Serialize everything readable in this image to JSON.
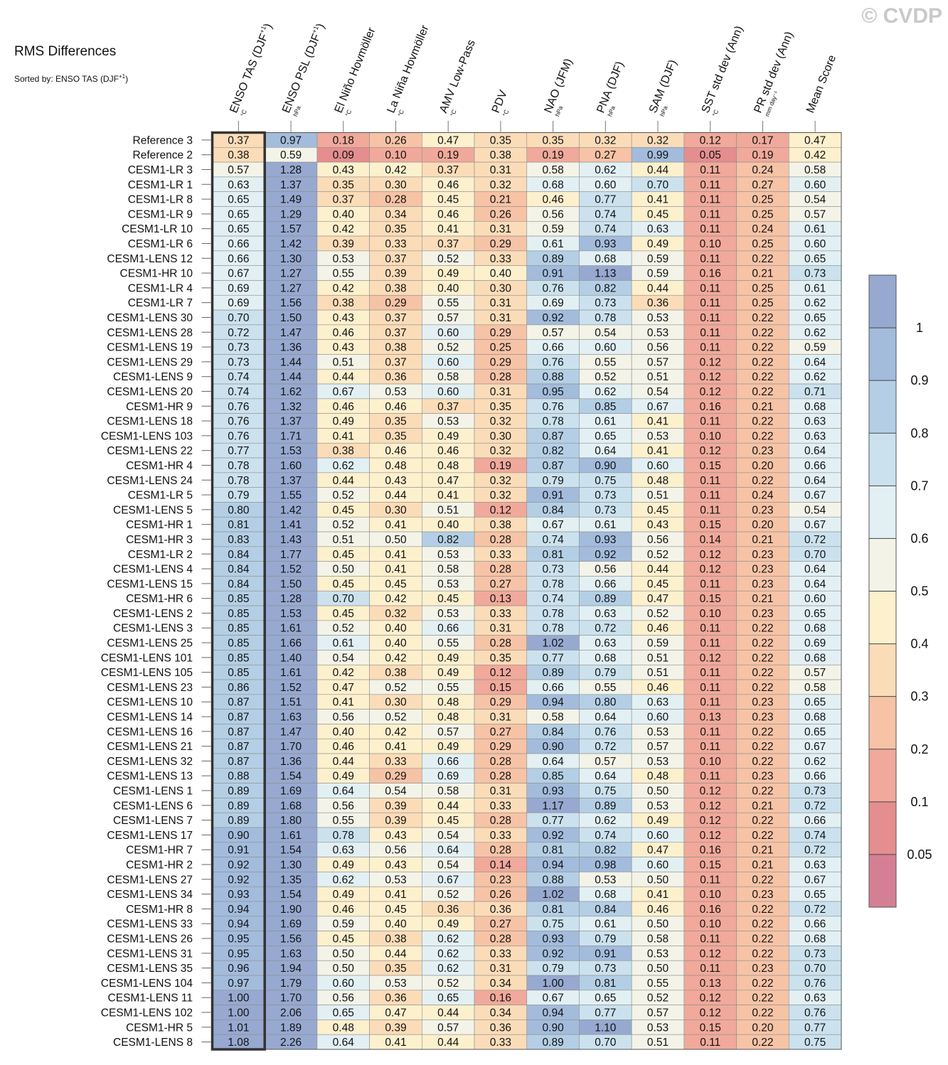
{
  "title": "RMS Differences",
  "subtitle": "Sorted by: ENSO TAS (DJF",
  "subtitle_sup": "+1",
  "subtitle_end": ")",
  "watermark": "© CVDP",
  "chart_data": {
    "type": "heatmap",
    "columns": [
      {
        "label": "ENSO TAS (DJF",
        "sup": "+1",
        "end": ")",
        "unit": "°C"
      },
      {
        "label": "ENSO PSL (DJF",
        "sup": "+1",
        "end": ")",
        "unit": "hPa"
      },
      {
        "label": "El Niño Hovmöller",
        "sup": "",
        "end": "",
        "unit": "°C"
      },
      {
        "label": "La Niña Hovmöller",
        "sup": "",
        "end": "",
        "unit": "°C"
      },
      {
        "label": "AMV Low-Pass",
        "sup": "",
        "end": "",
        "unit": "°C"
      },
      {
        "label": "PDV",
        "sup": "",
        "end": "",
        "unit": "°C"
      },
      {
        "label": "NAO (JFM)",
        "sup": "",
        "end": "",
        "unit": "hPa"
      },
      {
        "label": "PNA (DJF)",
        "sup": "",
        "end": "",
        "unit": "hPa"
      },
      {
        "label": "SAM (DJF)",
        "sup": "",
        "end": "",
        "unit": "hPa"
      },
      {
        "label": "SST std dev (Ann)",
        "sup": "",
        "end": "",
        "unit": "°C"
      },
      {
        "label": "PR std dev (Ann)",
        "sup": "",
        "end": "",
        "unit": "mm day⁻¹"
      },
      {
        "label": "Mean Score",
        "sup": "",
        "end": "",
        "unit": ""
      }
    ],
    "rows": [
      {
        "name": "Reference 3",
        "values": [
          0.37,
          0.97,
          0.18,
          0.26,
          0.47,
          0.35,
          0.35,
          0.32,
          0.32,
          0.12,
          0.17,
          0.47
        ]
      },
      {
        "name": "Reference 2",
        "values": [
          0.38,
          0.59,
          0.09,
          0.1,
          0.19,
          0.38,
          0.19,
          0.27,
          0.99,
          0.05,
          0.19,
          0.42
        ]
      },
      {
        "name": "CESM1-LR 3",
        "values": [
          0.57,
          1.28,
          0.43,
          0.42,
          0.37,
          0.31,
          0.58,
          0.62,
          0.44,
          0.11,
          0.24,
          0.58
        ]
      },
      {
        "name": "CESM1-LR 1",
        "values": [
          0.63,
          1.37,
          0.35,
          0.3,
          0.46,
          0.32,
          0.68,
          0.6,
          0.7,
          0.11,
          0.27,
          0.6
        ]
      },
      {
        "name": "CESM1-LR 8",
        "values": [
          0.65,
          1.49,
          0.37,
          0.28,
          0.45,
          0.21,
          0.46,
          0.77,
          0.41,
          0.11,
          0.25,
          0.54
        ]
      },
      {
        "name": "CESM1-LR 9",
        "values": [
          0.65,
          1.29,
          0.4,
          0.34,
          0.46,
          0.26,
          0.56,
          0.74,
          0.45,
          0.11,
          0.25,
          0.57
        ]
      },
      {
        "name": "CESM1-LR 10",
        "values": [
          0.65,
          1.57,
          0.42,
          0.35,
          0.41,
          0.31,
          0.59,
          0.74,
          0.63,
          0.11,
          0.24,
          0.61
        ]
      },
      {
        "name": "CESM1-LR 6",
        "values": [
          0.66,
          1.42,
          0.39,
          0.33,
          0.37,
          0.29,
          0.61,
          0.93,
          0.49,
          0.1,
          0.25,
          0.6
        ]
      },
      {
        "name": "CESM1-LENS 12",
        "values": [
          0.66,
          1.3,
          0.53,
          0.37,
          0.52,
          0.33,
          0.89,
          0.68,
          0.59,
          0.11,
          0.22,
          0.65
        ]
      },
      {
        "name": "CESM1-HR 10",
        "values": [
          0.67,
          1.27,
          0.55,
          0.39,
          0.49,
          0.4,
          0.91,
          1.13,
          0.59,
          0.16,
          0.21,
          0.73
        ]
      },
      {
        "name": "CESM1-LR 4",
        "values": [
          0.69,
          1.27,
          0.42,
          0.38,
          0.4,
          0.3,
          0.76,
          0.82,
          0.44,
          0.11,
          0.25,
          0.61
        ]
      },
      {
        "name": "CESM1-LR 7",
        "values": [
          0.69,
          1.56,
          0.38,
          0.29,
          0.55,
          0.31,
          0.69,
          0.73,
          0.36,
          0.11,
          0.25,
          0.62
        ]
      },
      {
        "name": "CESM1-LENS 30",
        "values": [
          0.7,
          1.5,
          0.43,
          0.37,
          0.57,
          0.31,
          0.92,
          0.78,
          0.53,
          0.11,
          0.22,
          0.65
        ]
      },
      {
        "name": "CESM1-LENS 28",
        "values": [
          0.72,
          1.47,
          0.46,
          0.37,
          0.6,
          0.29,
          0.57,
          0.54,
          0.53,
          0.11,
          0.22,
          0.62
        ]
      },
      {
        "name": "CESM1-LENS 19",
        "values": [
          0.73,
          1.36,
          0.43,
          0.38,
          0.52,
          0.25,
          0.66,
          0.6,
          0.56,
          0.11,
          0.22,
          0.59
        ]
      },
      {
        "name": "CESM1-LENS 29",
        "values": [
          0.73,
          1.44,
          0.51,
          0.37,
          0.6,
          0.29,
          0.76,
          0.55,
          0.57,
          0.12,
          0.22,
          0.64
        ]
      },
      {
        "name": "CESM1-LENS 9",
        "values": [
          0.74,
          1.44,
          0.44,
          0.36,
          0.58,
          0.28,
          0.88,
          0.52,
          0.51,
          0.12,
          0.22,
          0.62
        ]
      },
      {
        "name": "CESM1-LENS 20",
        "values": [
          0.74,
          1.62,
          0.67,
          0.53,
          0.6,
          0.31,
          0.95,
          0.62,
          0.54,
          0.12,
          0.22,
          0.71
        ]
      },
      {
        "name": "CESM1-HR 9",
        "values": [
          0.76,
          1.32,
          0.46,
          0.46,
          0.37,
          0.35,
          0.76,
          0.85,
          0.67,
          0.16,
          0.21,
          0.68
        ]
      },
      {
        "name": "CESM1-LENS 18",
        "values": [
          0.76,
          1.37,
          0.49,
          0.35,
          0.53,
          0.32,
          0.78,
          0.61,
          0.41,
          0.11,
          0.22,
          0.63
        ]
      },
      {
        "name": "CESM1-LENS 103",
        "values": [
          0.76,
          1.71,
          0.41,
          0.35,
          0.49,
          0.3,
          0.87,
          0.65,
          0.53,
          0.1,
          0.22,
          0.63
        ]
      },
      {
        "name": "CESM1-LENS 22",
        "values": [
          0.77,
          1.53,
          0.38,
          0.46,
          0.46,
          0.32,
          0.82,
          0.64,
          0.41,
          0.12,
          0.23,
          0.64
        ]
      },
      {
        "name": "CESM1-HR 4",
        "values": [
          0.78,
          1.6,
          0.62,
          0.48,
          0.48,
          0.19,
          0.87,
          0.9,
          0.6,
          0.15,
          0.2,
          0.66
        ]
      },
      {
        "name": "CESM1-LENS 24",
        "values": [
          0.78,
          1.37,
          0.44,
          0.43,
          0.47,
          0.32,
          0.79,
          0.75,
          0.48,
          0.11,
          0.22,
          0.64
        ]
      },
      {
        "name": "CESM1-LR 5",
        "values": [
          0.79,
          1.55,
          0.52,
          0.44,
          0.41,
          0.32,
          0.91,
          0.73,
          0.51,
          0.11,
          0.24,
          0.67
        ]
      },
      {
        "name": "CESM1-LENS 5",
        "values": [
          0.8,
          1.42,
          0.45,
          0.3,
          0.51,
          0.12,
          0.84,
          0.73,
          0.45,
          0.11,
          0.23,
          0.54
        ]
      },
      {
        "name": "CESM1-HR 1",
        "values": [
          0.81,
          1.41,
          0.52,
          0.41,
          0.4,
          0.38,
          0.67,
          0.61,
          0.43,
          0.15,
          0.2,
          0.67
        ]
      },
      {
        "name": "CESM1-HR 3",
        "values": [
          0.83,
          1.43,
          0.51,
          0.5,
          0.82,
          0.28,
          0.74,
          0.93,
          0.56,
          0.14,
          0.21,
          0.72
        ]
      },
      {
        "name": "CESM1-LR 2",
        "values": [
          0.84,
          1.77,
          0.45,
          0.41,
          0.53,
          0.33,
          0.81,
          0.92,
          0.52,
          0.12,
          0.23,
          0.7
        ]
      },
      {
        "name": "CESM1-LENS 4",
        "values": [
          0.84,
          1.52,
          0.5,
          0.41,
          0.58,
          0.28,
          0.73,
          0.56,
          0.44,
          0.12,
          0.23,
          0.64
        ]
      },
      {
        "name": "CESM1-LENS 15",
        "values": [
          0.84,
          1.5,
          0.45,
          0.45,
          0.53,
          0.27,
          0.78,
          0.66,
          0.45,
          0.11,
          0.23,
          0.64
        ]
      },
      {
        "name": "CESM1-HR 6",
        "values": [
          0.85,
          1.28,
          0.7,
          0.42,
          0.45,
          0.13,
          0.74,
          0.89,
          0.47,
          0.15,
          0.21,
          0.6
        ]
      },
      {
        "name": "CESM1-LENS 2",
        "values": [
          0.85,
          1.53,
          0.45,
          0.32,
          0.53,
          0.33,
          0.78,
          0.63,
          0.52,
          0.1,
          0.23,
          0.65
        ]
      },
      {
        "name": "CESM1-LENS 3",
        "values": [
          0.85,
          1.61,
          0.52,
          0.4,
          0.66,
          0.31,
          0.78,
          0.72,
          0.46,
          0.11,
          0.22,
          0.68
        ]
      },
      {
        "name": "CESM1-LENS 25",
        "values": [
          0.85,
          1.66,
          0.61,
          0.4,
          0.55,
          0.28,
          1.02,
          0.63,
          0.59,
          0.11,
          0.22,
          0.69
        ]
      },
      {
        "name": "CESM1-LENS 101",
        "values": [
          0.85,
          1.4,
          0.54,
          0.42,
          0.49,
          0.35,
          0.77,
          0.68,
          0.51,
          0.12,
          0.22,
          0.68
        ]
      },
      {
        "name": "CESM1-LENS 105",
        "values": [
          0.85,
          1.61,
          0.42,
          0.38,
          0.49,
          0.12,
          0.89,
          0.79,
          0.51,
          0.11,
          0.22,
          0.57
        ]
      },
      {
        "name": "CESM1-LENS 23",
        "values": [
          0.86,
          1.52,
          0.47,
          0.52,
          0.55,
          0.15,
          0.66,
          0.55,
          0.46,
          0.11,
          0.22,
          0.58
        ]
      },
      {
        "name": "CESM1-LENS 10",
        "values": [
          0.87,
          1.51,
          0.41,
          0.3,
          0.48,
          0.29,
          0.94,
          0.8,
          0.63,
          0.11,
          0.23,
          0.65
        ]
      },
      {
        "name": "CESM1-LENS 14",
        "values": [
          0.87,
          1.63,
          0.56,
          0.52,
          0.48,
          0.31,
          0.58,
          0.64,
          0.6,
          0.13,
          0.23,
          0.68
        ]
      },
      {
        "name": "CESM1-LENS 16",
        "values": [
          0.87,
          1.47,
          0.4,
          0.42,
          0.57,
          0.27,
          0.84,
          0.76,
          0.53,
          0.11,
          0.22,
          0.65
        ]
      },
      {
        "name": "CESM1-LENS 21",
        "values": [
          0.87,
          1.7,
          0.46,
          0.41,
          0.49,
          0.29,
          0.9,
          0.72,
          0.57,
          0.11,
          0.22,
          0.67
        ]
      },
      {
        "name": "CESM1-LENS 32",
        "values": [
          0.87,
          1.36,
          0.44,
          0.33,
          0.66,
          0.28,
          0.64,
          0.57,
          0.53,
          0.1,
          0.22,
          0.62
        ]
      },
      {
        "name": "CESM1-LENS 13",
        "values": [
          0.88,
          1.54,
          0.49,
          0.29,
          0.69,
          0.28,
          0.85,
          0.64,
          0.48,
          0.11,
          0.23,
          0.66
        ]
      },
      {
        "name": "CESM1-LENS 1",
        "values": [
          0.89,
          1.69,
          0.64,
          0.54,
          0.58,
          0.31,
          0.93,
          0.75,
          0.5,
          0.12,
          0.22,
          0.73
        ]
      },
      {
        "name": "CESM1-LENS 6",
        "values": [
          0.89,
          1.68,
          0.56,
          0.39,
          0.44,
          0.33,
          1.17,
          0.89,
          0.53,
          0.12,
          0.21,
          0.72
        ]
      },
      {
        "name": "CESM1-LENS 7",
        "values": [
          0.89,
          1.8,
          0.55,
          0.39,
          0.45,
          0.28,
          0.77,
          0.62,
          0.49,
          0.12,
          0.22,
          0.66
        ]
      },
      {
        "name": "CESM1-LENS 17",
        "values": [
          0.9,
          1.61,
          0.78,
          0.43,
          0.54,
          0.33,
          0.92,
          0.74,
          0.6,
          0.12,
          0.22,
          0.74
        ]
      },
      {
        "name": "CESM1-HR 7",
        "values": [
          0.91,
          1.54,
          0.63,
          0.56,
          0.64,
          0.28,
          0.81,
          0.82,
          0.47,
          0.16,
          0.21,
          0.72
        ]
      },
      {
        "name": "CESM1-HR 2",
        "values": [
          0.92,
          1.3,
          0.49,
          0.43,
          0.54,
          0.14,
          0.94,
          0.98,
          0.6,
          0.15,
          0.21,
          0.63
        ]
      },
      {
        "name": "CESM1-LENS 27",
        "values": [
          0.92,
          1.35,
          0.62,
          0.53,
          0.67,
          0.23,
          0.88,
          0.53,
          0.5,
          0.11,
          0.22,
          0.67
        ]
      },
      {
        "name": "CESM1-LENS 34",
        "values": [
          0.93,
          1.54,
          0.49,
          0.41,
          0.52,
          0.26,
          1.02,
          0.68,
          0.41,
          0.1,
          0.23,
          0.65
        ]
      },
      {
        "name": "CESM1-HR 8",
        "values": [
          0.94,
          1.9,
          0.46,
          0.45,
          0.36,
          0.36,
          0.81,
          0.84,
          0.46,
          0.16,
          0.22,
          0.72
        ]
      },
      {
        "name": "CESM1-LENS 33",
        "values": [
          0.94,
          1.69,
          0.59,
          0.4,
          0.49,
          0.27,
          0.75,
          0.61,
          0.5,
          0.1,
          0.22,
          0.66
        ]
      },
      {
        "name": "CESM1-LENS 26",
        "values": [
          0.95,
          1.56,
          0.45,
          0.38,
          0.62,
          0.28,
          0.93,
          0.79,
          0.58,
          0.11,
          0.22,
          0.68
        ]
      },
      {
        "name": "CESM1-LENS 31",
        "values": [
          0.95,
          1.63,
          0.5,
          0.44,
          0.62,
          0.33,
          0.92,
          0.91,
          0.53,
          0.12,
          0.22,
          0.73
        ]
      },
      {
        "name": "CESM1-LENS 35",
        "values": [
          0.96,
          1.94,
          0.5,
          0.35,
          0.62,
          0.31,
          0.79,
          0.73,
          0.5,
          0.11,
          0.23,
          0.7
        ]
      },
      {
        "name": "CESM1-LENS 104",
        "values": [
          0.97,
          1.79,
          0.6,
          0.53,
          0.52,
          0.34,
          1.0,
          0.81,
          0.55,
          0.13,
          0.22,
          0.76
        ]
      },
      {
        "name": "CESM1-LENS 11",
        "values": [
          1.0,
          1.7,
          0.56,
          0.36,
          0.65,
          0.16,
          0.67,
          0.65,
          0.52,
          0.12,
          0.22,
          0.63
        ]
      },
      {
        "name": "CESM1-LENS 102",
        "values": [
          1.0,
          2.06,
          0.65,
          0.47,
          0.44,
          0.34,
          0.94,
          0.77,
          0.57,
          0.12,
          0.22,
          0.76
        ]
      },
      {
        "name": "CESM1-HR 5",
        "values": [
          1.01,
          1.89,
          0.48,
          0.39,
          0.57,
          0.36,
          0.9,
          1.1,
          0.53,
          0.15,
          0.2,
          0.77
        ]
      },
      {
        "name": "CESM1-LENS 8",
        "values": [
          1.08,
          2.26,
          0.64,
          0.41,
          0.44,
          0.33,
          0.89,
          0.7,
          0.51,
          0.11,
          0.22,
          0.75
        ]
      }
    ],
    "sorted_column": 0,
    "colorbar": {
      "boundaries": [
        0,
        0.05,
        0.1,
        0.2,
        0.3,
        0.4,
        0.5,
        0.6,
        0.7,
        0.8,
        0.9,
        1.0,
        99
      ],
      "tick_labels": [
        "0.05",
        "0.1",
        "0.2",
        "0.3",
        "0.4",
        "0.5",
        "0.6",
        "0.7",
        "0.8",
        "0.9",
        "1"
      ],
      "colors": [
        "#d57f94",
        "#e48e8f",
        "#f0a99a",
        "#f6c3a6",
        "#fbdcb8",
        "#fdf0cd",
        "#f3f3e8",
        "#e2f0f4",
        "#cbe2ee",
        "#b4cfe5",
        "#a3bcdc",
        "#97a9d0"
      ]
    }
  }
}
